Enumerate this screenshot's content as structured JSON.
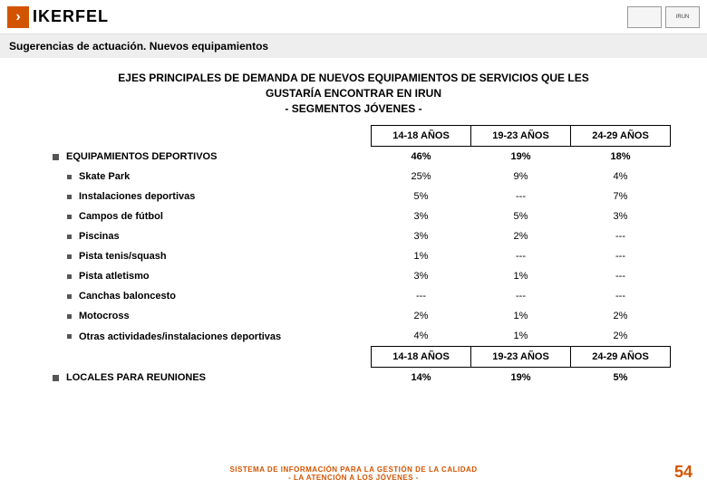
{
  "header": {
    "logo_text": "IKERFEL",
    "badge1": "",
    "badge2": "IRUN"
  },
  "subtitle": "Sugerencias de actuación. Nuevos equipamientos",
  "main_title_l1": "EJES PRINCIPALES DE DEMANDA DE NUEVOS EQUIPAMIENTOS DE SERVICIOS QUE LES",
  "main_title_l2": "GUSTARÍA ENCONTRAR EN IRUN",
  "main_title_l3": "- SEGMENTOS JÓVENES -",
  "cols": [
    "14-18 AÑOS",
    "19-23 AÑOS",
    "24-29 AÑOS"
  ],
  "section1": {
    "label": "EQUIPAMIENTOS DEPORTIVOS",
    "vals": [
      "46%",
      "19%",
      "18%"
    ],
    "rows": [
      {
        "label": "Skate Park",
        "vals": [
          "25%",
          "9%",
          "4%"
        ]
      },
      {
        "label": "Instalaciones deportivas",
        "vals": [
          "5%",
          "---",
          "7%"
        ]
      },
      {
        "label": "Campos de fútbol",
        "vals": [
          "3%",
          "5%",
          "3%"
        ]
      },
      {
        "label": "Piscinas",
        "vals": [
          "3%",
          "2%",
          "---"
        ]
      },
      {
        "label": "Pista tenis/squash",
        "vals": [
          "1%",
          "---",
          "---"
        ]
      },
      {
        "label": "Pista atletismo",
        "vals": [
          "3%",
          "1%",
          "---"
        ]
      },
      {
        "label": "Canchas baloncesto",
        "vals": [
          "---",
          "---",
          "---"
        ]
      },
      {
        "label": "Motocross",
        "vals": [
          "2%",
          "1%",
          "2%"
        ]
      },
      {
        "label": "Otras actividades/instalaciones deportivas",
        "vals": [
          "4%",
          "1%",
          "2%"
        ]
      }
    ]
  },
  "section2": {
    "label": "LOCALES PARA REUNIONES",
    "vals": [
      "14%",
      "19%",
      "5%"
    ]
  },
  "footer_l1": "SISTEMA DE INFORMACIÓN PARA LA GESTIÓN DE LA CALIDAD",
  "footer_l2": "- LA ATENCIÓN A LOS JÓVENES -",
  "page": "54"
}
